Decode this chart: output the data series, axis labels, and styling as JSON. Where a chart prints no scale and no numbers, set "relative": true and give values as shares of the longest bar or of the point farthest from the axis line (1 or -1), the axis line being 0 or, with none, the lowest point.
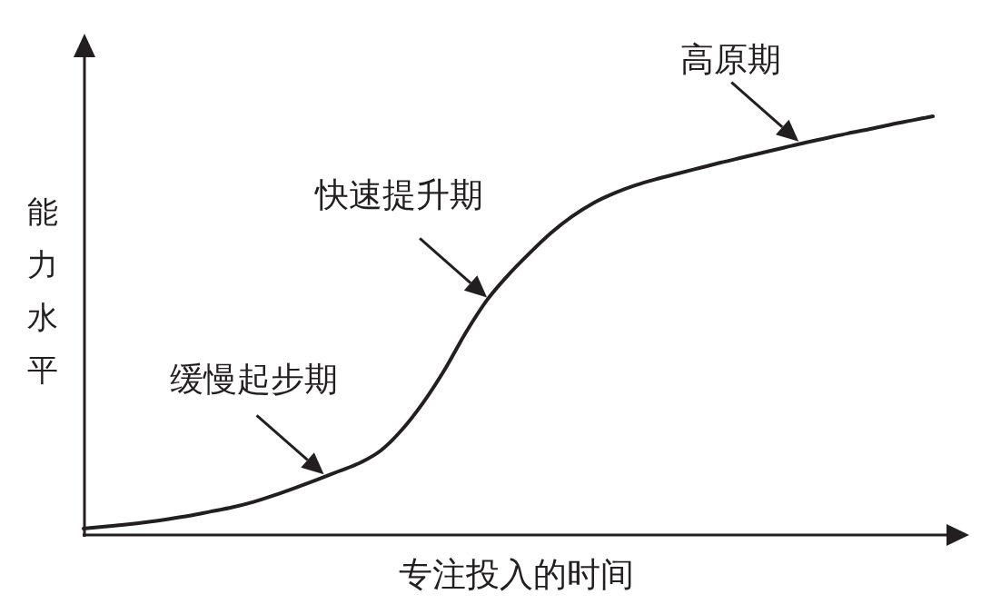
{
  "chart_data": {
    "type": "line",
    "relative": true,
    "xlabel": "专注投入的时间",
    "ylabel": "能力水平",
    "categories": [
      null,
      null,
      null,
      null,
      null,
      null,
      null,
      null,
      null,
      null,
      null,
      null,
      null,
      null,
      null,
      null,
      null,
      null,
      null,
      null,
      null,
      null,
      null,
      null,
      null,
      null,
      null,
      null,
      null,
      null,
      null,
      null,
      null,
      null,
      null,
      null,
      null,
      null,
      null,
      null,
      null
    ],
    "series": [
      {
        "color": "#231f20",
        "values": [
          0.013,
          0.018,
          0.023,
          0.029,
          0.036,
          0.044,
          0.054,
          0.064,
          0.077,
          0.093,
          0.111,
          0.13,
          0.15,
          0.17,
          0.2,
          0.25,
          0.315,
          0.393,
          0.482,
          0.56,
          0.62,
          0.672,
          0.72,
          0.76,
          0.792,
          0.816,
          0.835,
          0.85,
          0.863,
          0.876,
          0.889,
          0.901,
          0.913,
          0.925,
          0.937,
          0.948,
          0.959,
          0.969,
          0.98,
          0.99,
          1.0
        ]
      }
    ],
    "annotations": [
      "缓慢起步期",
      "快速提升期",
      "高原期"
    ]
  }
}
